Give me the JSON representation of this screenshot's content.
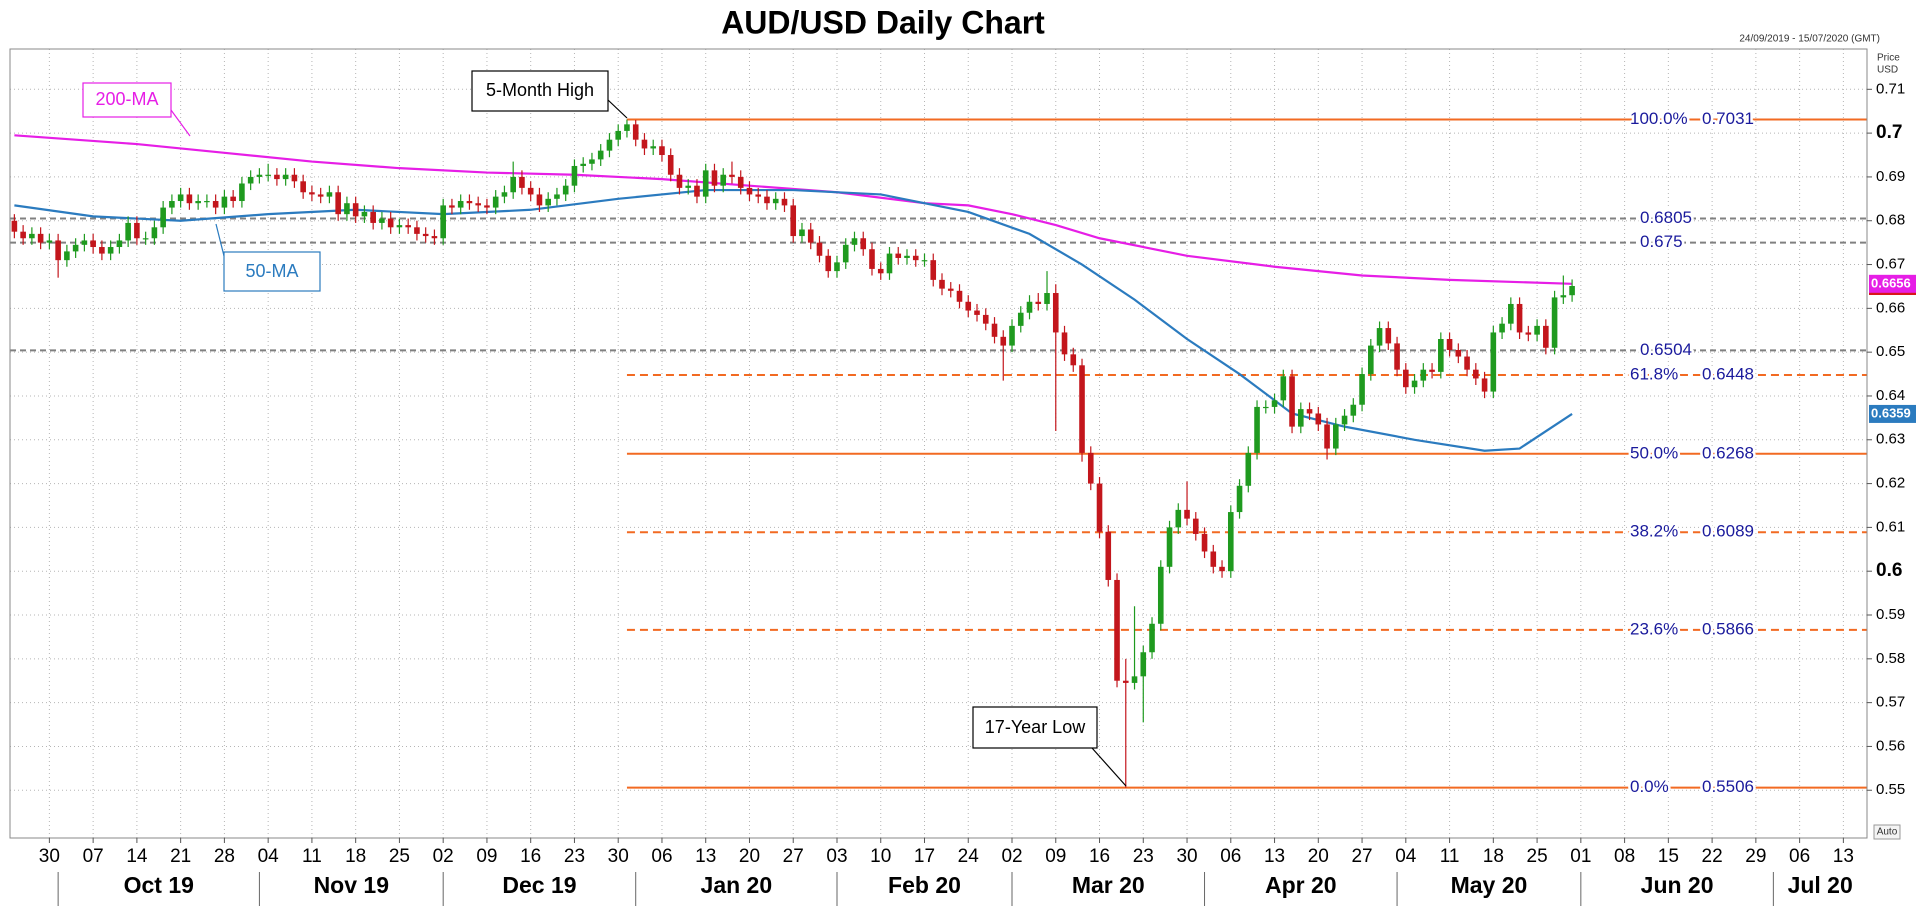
{
  "chart_data": {
    "type": "candlestick",
    "title": "AUD/USD Daily Chart",
    "subtitle": "24/09/2019 - 15/07/2020 (GMT)",
    "ylabel_lines": [
      "Price",
      "USD"
    ],
    "up_color": "#1f9a1f",
    "down_color": "#c3161c",
    "x": [
      -4,
      -3,
      -2,
      -1,
      0,
      1,
      2,
      3,
      4,
      5,
      6,
      7,
      8,
      9,
      10,
      11,
      12,
      13,
      14,
      15,
      16,
      17,
      18,
      19,
      20,
      21,
      22,
      23,
      24,
      25,
      26,
      27,
      28,
      29,
      30,
      31,
      32,
      33,
      34,
      35,
      36,
      37,
      38,
      39,
      40,
      41,
      42,
      43,
      44,
      45,
      46,
      47,
      48,
      49,
      50,
      51,
      52,
      53,
      54,
      55,
      56,
      57,
      58,
      59,
      60,
      61,
      62,
      63,
      64,
      65,
      66,
      67,
      68,
      69,
      70,
      71,
      72,
      73,
      74,
      75,
      76,
      77,
      78,
      79,
      80,
      81,
      82,
      83,
      84,
      85,
      86,
      87,
      88,
      89,
      90,
      91,
      92,
      93,
      94,
      95,
      96,
      97,
      98,
      99,
      100,
      101,
      102,
      103,
      104,
      105,
      106,
      107,
      108,
      109,
      110,
      111,
      112,
      113,
      114,
      115,
      116,
      117,
      118,
      119,
      120,
      121,
      122,
      123,
      124,
      125,
      126,
      127,
      128,
      129,
      130,
      131,
      132,
      133,
      134,
      135,
      136,
      137,
      138,
      139,
      140,
      141,
      142,
      143,
      144,
      145,
      146,
      147,
      148,
      149,
      150,
      151,
      152,
      153,
      154,
      155,
      156,
      157,
      158,
      159,
      160,
      161,
      162,
      163,
      164,
      165,
      166,
      167,
      168,
      169,
      170,
      171,
      172,
      173,
      174
    ],
    "open": [
      0.68,
      0.6775,
      0.676,
      0.677,
      0.675,
      0.6755,
      0.671,
      0.673,
      0.6745,
      0.6755,
      0.674,
      0.6725,
      0.674,
      0.6755,
      0.6795,
      0.676,
      0.676,
      0.6785,
      0.683,
      0.6845,
      0.686,
      0.684,
      0.6845,
      0.6845,
      0.683,
      0.6855,
      0.6845,
      0.6885,
      0.69,
      0.6905,
      0.6905,
      0.6895,
      0.6905,
      0.689,
      0.6865,
      0.686,
      0.6855,
      0.6865,
      0.6815,
      0.684,
      0.681,
      0.682,
      0.6795,
      0.6805,
      0.6785,
      0.679,
      0.6785,
      0.677,
      0.6765,
      0.676,
      0.6835,
      0.683,
      0.6845,
      0.684,
      0.6835,
      0.683,
      0.6855,
      0.6865,
      0.69,
      0.6875,
      0.686,
      0.6835,
      0.685,
      0.686,
      0.688,
      0.6925,
      0.693,
      0.694,
      0.696,
      0.6985,
      0.7005,
      0.702,
      0.6985,
      0.6965,
      0.697,
      0.695,
      0.6905,
      0.6875,
      0.688,
      0.6855,
      0.6915,
      0.688,
      0.6905,
      0.69,
      0.6875,
      0.686,
      0.6855,
      0.684,
      0.685,
      0.6835,
      0.6765,
      0.678,
      0.675,
      0.672,
      0.6685,
      0.6705,
      0.6745,
      0.676,
      0.6735,
      0.669,
      0.668,
      0.6725,
      0.6715,
      0.672,
      0.671,
      0.671,
      0.6665,
      0.6645,
      0.664,
      0.6615,
      0.6595,
      0.6585,
      0.6565,
      0.6535,
      0.6515,
      0.656,
      0.659,
      0.6615,
      0.661,
      0.6635,
      0.6545,
      0.6495,
      0.647,
      0.627,
      0.62,
      0.609,
      0.598,
      0.575,
      0.5745,
      0.576,
      0.5815,
      0.588,
      0.601,
      0.61,
      0.614,
      0.612,
      0.6085,
      0.6045,
      0.601,
      0.6,
      0.6135,
      0.6195,
      0.627,
      0.6375,
      0.6375,
      0.639,
      0.6445,
      0.633,
      0.637,
      0.636,
      0.6335,
      0.628,
      0.6335,
      0.6355,
      0.638,
      0.645,
      0.6515,
      0.6555,
      0.652,
      0.646,
      0.642,
      0.6435,
      0.646,
      0.6455,
      0.653,
      0.6505,
      0.649,
      0.646,
      0.644,
      0.641,
      0.6545,
      0.6565,
      0.661,
      0.6545,
      0.654,
      0.656,
      0.651,
      0.6625,
      0.663
    ],
    "high": [
      0.6815,
      0.679,
      0.6785,
      0.6785,
      0.677,
      0.677,
      0.6745,
      0.676,
      0.677,
      0.677,
      0.6755,
      0.6755,
      0.677,
      0.681,
      0.681,
      0.6775,
      0.68,
      0.6845,
      0.686,
      0.6875,
      0.6875,
      0.686,
      0.686,
      0.686,
      0.687,
      0.687,
      0.69,
      0.6915,
      0.692,
      0.693,
      0.692,
      0.692,
      0.692,
      0.6905,
      0.688,
      0.6875,
      0.688,
      0.688,
      0.6855,
      0.6855,
      0.6835,
      0.6835,
      0.682,
      0.682,
      0.6805,
      0.6805,
      0.68,
      0.6785,
      0.678,
      0.685,
      0.685,
      0.686,
      0.686,
      0.6855,
      0.685,
      0.687,
      0.688,
      0.6935,
      0.6915,
      0.689,
      0.6875,
      0.6865,
      0.6875,
      0.6895,
      0.694,
      0.6945,
      0.6955,
      0.6975,
      0.7,
      0.702,
      0.7031,
      0.703,
      0.7,
      0.6985,
      0.6985,
      0.6965,
      0.692,
      0.6895,
      0.6895,
      0.693,
      0.693,
      0.692,
      0.6935,
      0.6915,
      0.689,
      0.6875,
      0.687,
      0.6865,
      0.6865,
      0.685,
      0.6795,
      0.6795,
      0.6765,
      0.6735,
      0.672,
      0.676,
      0.6775,
      0.6775,
      0.675,
      0.6705,
      0.674,
      0.674,
      0.6735,
      0.6735,
      0.6725,
      0.6725,
      0.668,
      0.666,
      0.6655,
      0.663,
      0.661,
      0.66,
      0.658,
      0.655,
      0.6575,
      0.6605,
      0.663,
      0.6635,
      0.6685,
      0.6655,
      0.656,
      0.651,
      0.6485,
      0.6285,
      0.6215,
      0.6105,
      0.5995,
      0.58,
      0.592,
      0.583,
      0.5895,
      0.6025,
      0.6115,
      0.6155,
      0.6205,
      0.6135,
      0.61,
      0.606,
      0.6025,
      0.615,
      0.621,
      0.6285,
      0.639,
      0.639,
      0.6405,
      0.646,
      0.646,
      0.6385,
      0.6385,
      0.6375,
      0.635,
      0.635,
      0.637,
      0.6395,
      0.6465,
      0.653,
      0.657,
      0.657,
      0.6535,
      0.6475,
      0.645,
      0.6475,
      0.6475,
      0.6545,
      0.6545,
      0.652,
      0.6505,
      0.6475,
      0.6455,
      0.656,
      0.658,
      0.6625,
      0.6625,
      0.656,
      0.6575,
      0.6575,
      0.664,
      0.6675,
      0.6666
    ],
    "low": [
      0.676,
      0.6745,
      0.6745,
      0.6735,
      0.6735,
      0.667,
      0.6695,
      0.6715,
      0.673,
      0.6725,
      0.671,
      0.671,
      0.6725,
      0.674,
      0.6745,
      0.6745,
      0.6745,
      0.677,
      0.6815,
      0.683,
      0.6825,
      0.6825,
      0.683,
      0.6815,
      0.6815,
      0.683,
      0.683,
      0.687,
      0.6885,
      0.689,
      0.688,
      0.688,
      0.6875,
      0.685,
      0.6845,
      0.684,
      0.684,
      0.68,
      0.68,
      0.6795,
      0.6795,
      0.678,
      0.678,
      0.677,
      0.677,
      0.677,
      0.6755,
      0.675,
      0.6745,
      0.6745,
      0.6815,
      0.6815,
      0.6825,
      0.682,
      0.6815,
      0.6815,
      0.684,
      0.685,
      0.686,
      0.6845,
      0.682,
      0.682,
      0.6835,
      0.6845,
      0.6865,
      0.691,
      0.6915,
      0.6925,
      0.6945,
      0.697,
      0.699,
      0.697,
      0.695,
      0.695,
      0.6935,
      0.689,
      0.686,
      0.686,
      0.684,
      0.684,
      0.6865,
      0.6865,
      0.6885,
      0.686,
      0.6845,
      0.684,
      0.6825,
      0.6825,
      0.682,
      0.675,
      0.675,
      0.6735,
      0.6705,
      0.667,
      0.667,
      0.669,
      0.673,
      0.672,
      0.6675,
      0.6665,
      0.6665,
      0.67,
      0.67,
      0.6695,
      0.6695,
      0.665,
      0.663,
      0.6625,
      0.66,
      0.658,
      0.657,
      0.655,
      0.652,
      0.6435,
      0.65,
      0.6545,
      0.6575,
      0.6595,
      0.6595,
      0.632,
      0.648,
      0.6455,
      0.625,
      0.6185,
      0.6075,
      0.5965,
      0.5735,
      0.5506,
      0.573,
      0.5655,
      0.58,
      0.5865,
      0.5995,
      0.6085,
      0.6105,
      0.607,
      0.603,
      0.5995,
      0.5985,
      0.5985,
      0.612,
      0.618,
      0.6255,
      0.636,
      0.636,
      0.6375,
      0.6315,
      0.6315,
      0.6345,
      0.632,
      0.6255,
      0.6265,
      0.632,
      0.634,
      0.6365,
      0.6435,
      0.65,
      0.6505,
      0.6445,
      0.6405,
      0.6405,
      0.642,
      0.644,
      0.644,
      0.649,
      0.6475,
      0.6445,
      0.6425,
      0.6395,
      0.6395,
      0.653,
      0.655,
      0.653,
      0.6525,
      0.6525,
      0.6495,
      0.6495,
      0.661,
      0.6615
    ],
    "close": [
      0.6775,
      0.676,
      0.677,
      0.675,
      0.6755,
      0.671,
      0.673,
      0.6745,
      0.6755,
      0.674,
      0.6725,
      0.674,
      0.6755,
      0.6795,
      0.676,
      0.676,
      0.6785,
      0.683,
      0.6845,
      0.686,
      0.684,
      0.6845,
      0.6845,
      0.683,
      0.6855,
      0.6845,
      0.6885,
      0.69,
      0.6905,
      0.6905,
      0.6895,
      0.6905,
      0.689,
      0.6865,
      0.686,
      0.6855,
      0.6865,
      0.6815,
      0.684,
      0.681,
      0.682,
      0.6795,
      0.6805,
      0.6785,
      0.679,
      0.6785,
      0.677,
      0.6765,
      0.676,
      0.6835,
      0.683,
      0.6845,
      0.684,
      0.6835,
      0.683,
      0.6855,
      0.6865,
      0.69,
      0.6875,
      0.686,
      0.6835,
      0.685,
      0.686,
      0.688,
      0.6925,
      0.693,
      0.694,
      0.696,
      0.6985,
      0.7005,
      0.702,
      0.6985,
      0.6965,
      0.697,
      0.695,
      0.6905,
      0.6875,
      0.688,
      0.6855,
      0.6915,
      0.688,
      0.6905,
      0.69,
      0.6875,
      0.686,
      0.6855,
      0.684,
      0.685,
      0.6835,
      0.6765,
      0.678,
      0.675,
      0.672,
      0.6685,
      0.6705,
      0.6745,
      0.676,
      0.6735,
      0.669,
      0.668,
      0.6725,
      0.6715,
      0.672,
      0.671,
      0.671,
      0.6665,
      0.6645,
      0.664,
      0.6615,
      0.6595,
      0.6585,
      0.6565,
      0.6535,
      0.6515,
      0.656,
      0.659,
      0.6615,
      0.661,
      0.6635,
      0.6545,
      0.6495,
      0.647,
      0.627,
      0.62,
      0.609,
      0.598,
      0.575,
      0.5745,
      0.576,
      0.5815,
      0.588,
      0.601,
      0.61,
      0.614,
      0.612,
      0.6085,
      0.6045,
      0.601,
      0.6,
      0.6135,
      0.6195,
      0.627,
      0.6375,
      0.6375,
      0.639,
      0.6445,
      0.633,
      0.637,
      0.636,
      0.6335,
      0.628,
      0.6335,
      0.6355,
      0.638,
      0.645,
      0.6515,
      0.6555,
      0.652,
      0.646,
      0.642,
      0.6435,
      0.646,
      0.6455,
      0.653,
      0.6505,
      0.649,
      0.646,
      0.644,
      0.641,
      0.6545,
      0.6565,
      0.661,
      0.6545,
      0.654,
      0.656,
      0.651,
      0.6625,
      0.663,
      0.6651
    ],
    "last_price_color": "#d8161b",
    "overlays": [
      {
        "name": "200-MA",
        "color": "#e61ee6",
        "x": [
          -4,
          10,
          20,
          30,
          40,
          50,
          60,
          70,
          80,
          90,
          100,
          105,
          110,
          115,
          120,
          130,
          140,
          150,
          160,
          174
        ],
        "values": [
          0.6995,
          0.6975,
          0.6955,
          0.6935,
          0.692,
          0.691,
          0.6905,
          0.6895,
          0.688,
          0.6865,
          0.684,
          0.6835,
          0.6815,
          0.679,
          0.676,
          0.672,
          0.6695,
          0.6675,
          0.6665,
          0.6656
        ]
      },
      {
        "name": "50-MA",
        "color": "#2b7bbf",
        "x": [
          -4,
          5,
          15,
          25,
          35,
          45,
          55,
          65,
          75,
          85,
          95,
          105,
          112,
          118,
          124,
          130,
          136,
          142,
          148,
          156,
          164,
          168,
          174
        ],
        "values": [
          0.6835,
          0.681,
          0.68,
          0.6815,
          0.6825,
          0.6815,
          0.6825,
          0.685,
          0.687,
          0.687,
          0.686,
          0.682,
          0.677,
          0.67,
          0.662,
          0.653,
          0.645,
          0.636,
          0.633,
          0.63,
          0.6275,
          0.628,
          0.6359
        ]
      }
    ],
    "fib_from_x": 66,
    "fib_color": "#f26a22",
    "fib_levels": [
      {
        "pct": "100.0%",
        "value": 0.7031,
        "style": "solid"
      },
      {
        "pct": "61.8%",
        "value": 0.6448,
        "style": "dashed"
      },
      {
        "pct": "50.0%",
        "value": 0.6268,
        "style": "solid"
      },
      {
        "pct": "38.2%",
        "value": 0.6089,
        "style": "dashed"
      },
      {
        "pct": "23.6%",
        "value": 0.5866,
        "style": "dashed"
      },
      {
        "pct": "0.0%",
        "value": 0.5506,
        "style": "solid"
      }
    ],
    "levels": [
      0.6805,
      0.675,
      0.6504
    ],
    "level_color": "#808080",
    "annotations": [
      "5-Month High",
      "17-Year Low"
    ],
    "xlim": [
      -4.5,
      207.7
    ],
    "ylim": [
      0.5391,
      0.7192
    ],
    "xticks": [
      {
        "value": 0,
        "label": "30"
      },
      {
        "value": 5,
        "label": "07"
      },
      {
        "value": 10,
        "label": "14"
      },
      {
        "value": 15,
        "label": "21"
      },
      {
        "value": 20,
        "label": "28"
      },
      {
        "value": 25,
        "label": "04"
      },
      {
        "value": 30,
        "label": "11"
      },
      {
        "value": 35,
        "label": "18"
      },
      {
        "value": 40,
        "label": "25"
      },
      {
        "value": 45,
        "label": "02"
      },
      {
        "value": 50,
        "label": "09"
      },
      {
        "value": 55,
        "label": "16"
      },
      {
        "value": 60,
        "label": "23"
      },
      {
        "value": 65,
        "label": "30"
      },
      {
        "value": 70,
        "label": "06"
      },
      {
        "value": 75,
        "label": "13"
      },
      {
        "value": 80,
        "label": "20"
      },
      {
        "value": 85,
        "label": "27"
      },
      {
        "value": 90,
        "label": "03"
      },
      {
        "value": 95,
        "label": "10"
      },
      {
        "value": 100,
        "label": "17"
      },
      {
        "value": 105,
        "label": "24"
      },
      {
        "value": 110,
        "label": "02"
      },
      {
        "value": 115,
        "label": "09"
      },
      {
        "value": 120,
        "label": "16"
      },
      {
        "value": 125,
        "label": "23"
      },
      {
        "value": 130,
        "label": "30"
      },
      {
        "value": 135,
        "label": "06"
      },
      {
        "value": 140,
        "label": "13"
      },
      {
        "value": 145,
        "label": "20"
      },
      {
        "value": 150,
        "label": "27"
      },
      {
        "value": 155,
        "label": "04"
      },
      {
        "value": 160,
        "label": "11"
      },
      {
        "value": 165,
        "label": "18"
      },
      {
        "value": 170,
        "label": "25"
      },
      {
        "value": 175,
        "label": "01"
      },
      {
        "value": 180,
        "label": "08"
      },
      {
        "value": 185,
        "label": "15"
      },
      {
        "value": 190,
        "label": "22"
      },
      {
        "value": 195,
        "label": "29"
      },
      {
        "value": 200,
        "label": "06"
      },
      {
        "value": 205,
        "label": "13"
      }
    ],
    "months": [
      {
        "value": 1,
        "label": "Oct 19"
      },
      {
        "value": 24,
        "label": "Nov 19"
      },
      {
        "value": 45,
        "label": "Dec 19"
      },
      {
        "value": 67,
        "label": "Jan 20"
      },
      {
        "value": 90,
        "label": "Feb 20"
      },
      {
        "value": 110,
        "label": "Mar 20"
      },
      {
        "value": 132,
        "label": "Apr 20"
      },
      {
        "value": 154,
        "label": "May 20"
      },
      {
        "value": 175,
        "label": "Jun 20"
      },
      {
        "value": 197,
        "label": "Jul 20"
      }
    ],
    "yticks": [
      0.55,
      0.56,
      0.57,
      0.58,
      0.59,
      0.6,
      0.61,
      0.62,
      0.63,
      0.64,
      0.65,
      0.66,
      0.67,
      0.68,
      0.69,
      0.7,
      0.71
    ],
    "grid": true,
    "auto_button": "Auto"
  }
}
